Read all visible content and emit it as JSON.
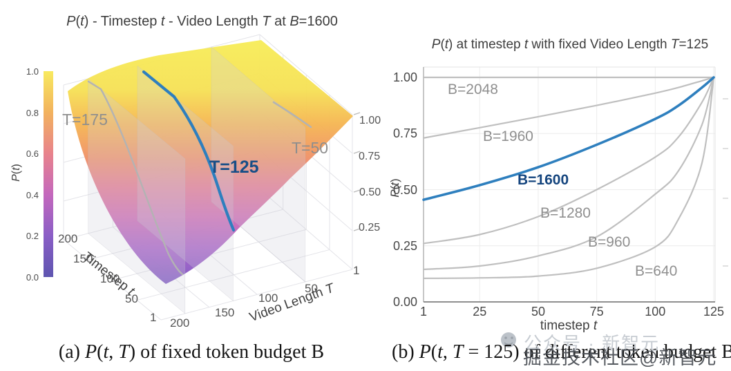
{
  "panel_a": {
    "title_rich": [
      [
        "i",
        "P"
      ],
      [
        "r",
        "("
      ],
      [
        "i",
        "t"
      ],
      [
        "r",
        ") - Timestep "
      ],
      [
        "i",
        "t"
      ],
      [
        "r",
        " - Video Length "
      ],
      [
        "i",
        "T"
      ],
      [
        "r",
        " at "
      ],
      [
        "i",
        "B"
      ],
      [
        "r",
        "=1600"
      ]
    ],
    "colorbar": {
      "label_rich": [
        [
          "i",
          "P"
        ],
        [
          "r",
          "("
        ],
        [
          "i",
          "t"
        ],
        [
          "r",
          ")"
        ]
      ],
      "ticks": [
        "1.0",
        "0.8",
        "0.6",
        "0.4",
        "0.2",
        "0.0"
      ],
      "colors_top_to_bottom": [
        "#f8ea5f",
        "#f2b25e",
        "#e8838c",
        "#c468bd",
        "#8a5ec6",
        "#5e55b0"
      ]
    },
    "x_axis": {
      "label_rich": [
        [
          "r",
          "Timestep "
        ],
        [
          "i",
          "t"
        ]
      ],
      "ticks": [
        "200",
        "150",
        "100",
        "50",
        "1"
      ]
    },
    "y_axis": {
      "label_rich": [
        [
          "r",
          "Video Length "
        ],
        [
          "i",
          "T"
        ]
      ],
      "ticks": [
        "200",
        "150",
        "100",
        "50",
        "1"
      ]
    },
    "z_axis": {
      "ticks": [
        "1.00",
        "0.75",
        "0.50",
        "0.25"
      ]
    },
    "contours": [
      {
        "label": "T=175",
        "highlight": false
      },
      {
        "label": "T=125",
        "highlight": true
      },
      {
        "label": "T=50",
        "highlight": false
      }
    ],
    "caption_rich": [
      [
        "r",
        "(a) "
      ],
      [
        "i",
        "P"
      ],
      [
        "r",
        "("
      ],
      [
        "i",
        "t"
      ],
      [
        "r",
        ", "
      ],
      [
        "i",
        "T"
      ],
      [
        "r",
        ") of fixed token budget B"
      ]
    ]
  },
  "panel_b": {
    "title_rich": [
      [
        "i",
        "P"
      ],
      [
        "r",
        "("
      ],
      [
        "i",
        "t"
      ],
      [
        "r",
        ") at timestep "
      ],
      [
        "i",
        "t"
      ],
      [
        "r",
        " with fixed Video Length "
      ],
      [
        "i",
        "T"
      ],
      [
        "r",
        "=125"
      ]
    ],
    "xlabel_rich": [
      [
        "r",
        "timestep "
      ],
      [
        "i",
        "t"
      ]
    ],
    "ylabel_rich": [
      [
        "i",
        "P"
      ],
      [
        "r",
        "("
      ],
      [
        "i",
        "t"
      ],
      [
        "r",
        ")"
      ]
    ],
    "x_ticks": [
      "1",
      "25",
      "50",
      "75",
      "100",
      "125"
    ],
    "y_ticks": [
      "1.00",
      "0.75",
      "0.50",
      "0.25",
      "0.00"
    ],
    "caption_rich": [
      [
        "r",
        "(b) "
      ],
      [
        "i",
        "P"
      ],
      [
        "r",
        "("
      ],
      [
        "i",
        "t"
      ],
      [
        "r",
        ", "
      ],
      [
        "i",
        "T"
      ],
      [
        "r",
        " = 125) of different token budget B"
      ]
    ]
  },
  "watermark": {
    "line1": "公众号 · 新智元",
    "line2": "掘金技术社区@新智元"
  },
  "colors": {
    "accent_blue": "#2e7fbe",
    "accent_blue_dark": "#15457e",
    "gray_curve": "#bfbfbf",
    "gray_label": "#8f8f8f"
  },
  "chart_data": [
    {
      "type": "surface",
      "title": "P(t) - Timestep t - Video Length T at B=1600",
      "xlabel": "Timestep t",
      "ylabel": "Video Length T",
      "zlabel": "P(t)",
      "xlim": [
        1,
        200
      ],
      "ylim": [
        1,
        200
      ],
      "zlim": [
        0,
        1
      ],
      "fixed_budget_B": 1600,
      "colormap": "plasma",
      "colorbar_ticks": [
        1.0,
        0.8,
        0.6,
        0.4,
        0.2,
        0.0
      ],
      "x_ticks": [
        200,
        150,
        100,
        50,
        1
      ],
      "y_ticks": [
        200,
        150,
        100,
        50,
        1
      ],
      "z_ticks": [
        1.0,
        0.75,
        0.5,
        0.25
      ],
      "contour_slices": [
        {
          "T": 175,
          "highlight": false
        },
        {
          "T": 125,
          "highlight": true
        },
        {
          "T": 50,
          "highlight": false
        }
      ],
      "surface_min_value_at": {
        "t": 1,
        "T": 200,
        "P": 0.24
      }
    },
    {
      "type": "line",
      "title": "P(t) at timestep t with fixed Video Length T=125",
      "xlabel": "timestep t",
      "ylabel": "P(t)",
      "xlim": [
        1,
        125
      ],
      "ylim": [
        0,
        1.05
      ],
      "x_ticks": [
        1,
        25,
        50,
        75,
        100,
        125
      ],
      "y_ticks": [
        0,
        0.25,
        0.5,
        0.75,
        1.0
      ],
      "grid": true,
      "legend_position": "inline-labels",
      "x_samples": [
        1,
        25,
        50,
        75,
        100,
        110,
        120,
        125
      ],
      "series": [
        {
          "label": "B=2048",
          "values": [
            1.0,
            1.0,
            1.0,
            1.0,
            1.0,
            1.0,
            1.0,
            1.0
          ],
          "emphasis": false
        },
        {
          "label": "B=1960",
          "values": [
            0.73,
            0.776,
            0.825,
            0.875,
            0.93,
            0.955,
            0.985,
            1.0
          ],
          "emphasis": false
        },
        {
          "label": "B=1600",
          "values": [
            0.455,
            0.52,
            0.6,
            0.7,
            0.815,
            0.875,
            0.955,
            1.0
          ],
          "emphasis": true
        },
        {
          "label": "B=1280",
          "values": [
            0.26,
            0.3,
            0.38,
            0.5,
            0.645,
            0.735,
            0.89,
            1.0
          ],
          "emphasis": false
        },
        {
          "label": "B=960",
          "values": [
            0.145,
            0.16,
            0.205,
            0.29,
            0.48,
            0.585,
            0.79,
            1.0
          ],
          "emphasis": false
        },
        {
          "label": "B=640",
          "values": [
            0.105,
            0.107,
            0.115,
            0.15,
            0.245,
            0.37,
            0.62,
            1.0
          ],
          "emphasis": false
        }
      ]
    }
  ]
}
